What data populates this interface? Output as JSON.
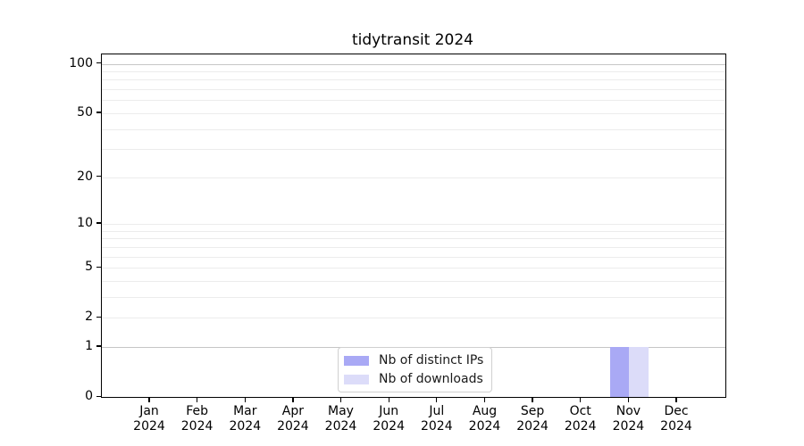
{
  "title": "tidytransit 2024",
  "chart_data": {
    "type": "bar",
    "title": "tidytransit 2024",
    "categories": [
      "Jan",
      "Feb",
      "Mar",
      "Apr",
      "May",
      "Jun",
      "Jul",
      "Aug",
      "Sep",
      "Oct",
      "Nov",
      "Dec"
    ],
    "category_year": "2024",
    "series": [
      {
        "name": "Nb of distinct IPs",
        "color": "#a9a9f5",
        "values": [
          0,
          0,
          0,
          0,
          0,
          0,
          0,
          0,
          0,
          0,
          1,
          0
        ]
      },
      {
        "name": "Nb of downloads",
        "color": "#dcdcf9",
        "values": [
          0,
          0,
          0,
          0,
          0,
          0,
          0,
          0,
          0,
          0,
          1,
          0
        ]
      }
    ],
    "xlabel": "",
    "ylabel": "",
    "y_scale": "log1p",
    "ylim": [
      0,
      114
    ],
    "y_ticks": [
      100,
      50,
      20,
      10,
      5,
      2,
      1,
      0
    ],
    "grid": "horizontal",
    "legend_position": "inside-bottom-center"
  }
}
